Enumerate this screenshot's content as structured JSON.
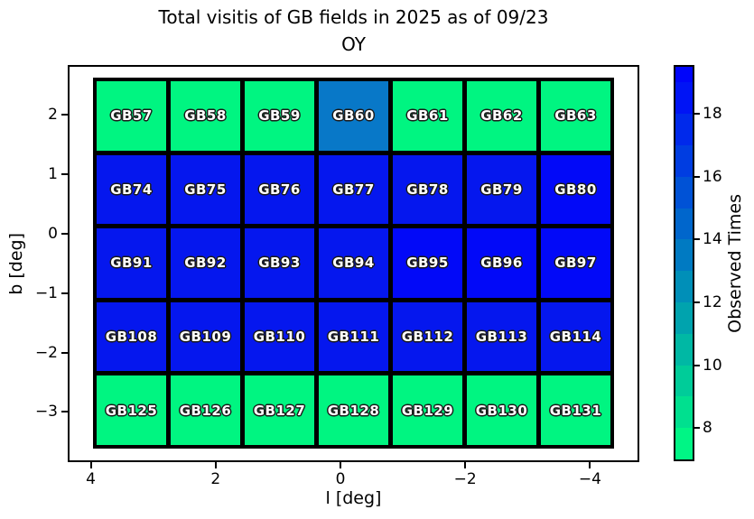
{
  "title": {
    "line1": "Total visitis of GB fields in 2025 as of 09/23",
    "line2": "OY"
  },
  "axes": {
    "xlabel": "l [deg]",
    "ylabel": "b [deg]",
    "xticks": [
      {
        "v": 4,
        "label": "4"
      },
      {
        "v": 2,
        "label": "2"
      },
      {
        "v": 0,
        "label": "0"
      },
      {
        "v": -2,
        "label": "−2"
      },
      {
        "v": -4,
        "label": "−4"
      }
    ],
    "yticks": [
      {
        "v": 2,
        "label": "2"
      },
      {
        "v": 1,
        "label": "1"
      },
      {
        "v": 0,
        "label": "0"
      },
      {
        "v": -1,
        "label": "−1"
      },
      {
        "v": -2,
        "label": "−2"
      },
      {
        "v": -3,
        "label": "−3"
      }
    ]
  },
  "colorbar": {
    "label": "Observed Times",
    "vmin": 7,
    "vmax": 19.5,
    "ticks": [
      {
        "v": 8,
        "label": "8"
      },
      {
        "v": 10,
        "label": "10"
      },
      {
        "v": 12,
        "label": "12"
      },
      {
        "v": 14,
        "label": "14"
      },
      {
        "v": 16,
        "label": "16"
      },
      {
        "v": 18,
        "label": "18"
      }
    ],
    "steps": [
      {
        "from": 19.5,
        "to": 19,
        "color": "#0005FA"
      },
      {
        "from": 19,
        "to": 18,
        "color": "#0014F5"
      },
      {
        "from": 18,
        "to": 17,
        "color": "#0029EB"
      },
      {
        "from": 17,
        "to": 16,
        "color": "#003DE1"
      },
      {
        "from": 16,
        "to": 15,
        "color": "#0052D6"
      },
      {
        "from": 15,
        "to": 14,
        "color": "#0066CC"
      },
      {
        "from": 14,
        "to": 13,
        "color": "#007AC2"
      },
      {
        "from": 13,
        "to": 12,
        "color": "#008FB8"
      },
      {
        "from": 12,
        "to": 11,
        "color": "#00A3AE"
      },
      {
        "from": 11,
        "to": 10,
        "color": "#00B8A4"
      },
      {
        "from": 10,
        "to": 9,
        "color": "#00CC99"
      },
      {
        "from": 9,
        "to": 8,
        "color": "#00E08F"
      },
      {
        "from": 8,
        "to": 7,
        "color": "#00F585"
      }
    ]
  },
  "chart_data": {
    "type": "heatmap",
    "title": "Total visitis of GB fields in 2025 as of 09/23 OY",
    "xlabel": "l [deg]",
    "ylabel": "b [deg]",
    "colorbar_label": "Observed Times",
    "xlim": [
      4.4,
      -4.8
    ],
    "ylim": [
      2.85,
      -3.85
    ],
    "colormap": "winter_r (stepped)",
    "value_range": [
      7,
      19.5
    ],
    "rows": [
      {
        "fields": [
          "GB57",
          "GB58",
          "GB59",
          "GB60",
          "GB61",
          "GB62",
          "GB63"
        ],
        "values": [
          7,
          7,
          7,
          14,
          7,
          7,
          7
        ]
      },
      {
        "fields": [
          "GB74",
          "GB75",
          "GB76",
          "GB77",
          "GB78",
          "GB79",
          "GB80"
        ],
        "values": [
          18,
          18,
          18,
          18,
          18,
          18,
          19
        ]
      },
      {
        "fields": [
          "GB91",
          "GB92",
          "GB93",
          "GB94",
          "GB95",
          "GB96",
          "GB97"
        ],
        "values": [
          18,
          18,
          18,
          18,
          19,
          19,
          19
        ]
      },
      {
        "fields": [
          "GB108",
          "GB109",
          "GB110",
          "GB111",
          "GB112",
          "GB113",
          "GB114"
        ],
        "values": [
          18,
          18,
          18,
          18,
          18,
          18,
          18
        ]
      },
      {
        "fields": [
          "GB125",
          "GB126",
          "GB127",
          "GB128",
          "GB129",
          "GB130",
          "GB131"
        ],
        "values": [
          7,
          7,
          7,
          7,
          7,
          7,
          7
        ]
      }
    ],
    "value_colors": {
      "7": "#00F581",
      "14": "#0878C8",
      "18": "#0517EE",
      "19": "#0209F8"
    }
  }
}
